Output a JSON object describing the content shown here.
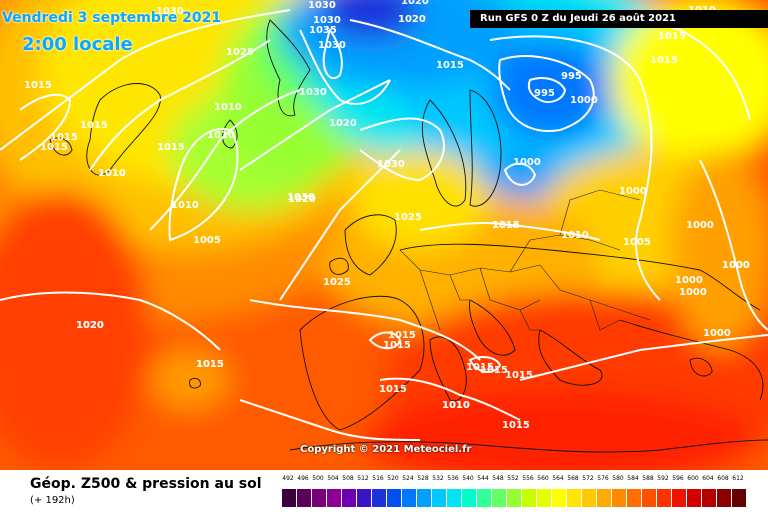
{
  "header": {
    "date_line": "Vendredi 3 septembre 2021",
    "time_line": "2:00 locale",
    "run_info": "Run GFS 0 Z du Jeudi 26 août 2021",
    "copyright": "Copyright © 2021 Meteociel.fr"
  },
  "footer": {
    "title": "Géop. Z500 & pression au sol",
    "subtitle": "(+ 192h)"
  },
  "legend": {
    "values": [
      "492",
      "496",
      "500",
      "504",
      "508",
      "512",
      "516",
      "520",
      "524",
      "528",
      "532",
      "536",
      "540",
      "544",
      "548",
      "552",
      "556",
      "560",
      "564",
      "568",
      "572",
      "576",
      "580",
      "584",
      "588",
      "592",
      "596",
      "600",
      "604",
      "608",
      "612"
    ],
    "colors": [
      "#3c003c",
      "#5a005a",
      "#780078",
      "#8c0096",
      "#6e00b4",
      "#3c14c8",
      "#1e32dc",
      "#0050f0",
      "#0078ff",
      "#00a0ff",
      "#00c8ff",
      "#00e6f0",
      "#00ffc8",
      "#32ff96",
      "#64ff64",
      "#96ff32",
      "#c8ff00",
      "#e6ff00",
      "#ffff00",
      "#ffe600",
      "#ffc800",
      "#ffaa00",
      "#ff8c00",
      "#ff6e00",
      "#ff5000",
      "#ff3200",
      "#f01400",
      "#d20000",
      "#b40000",
      "#8c0000",
      "#640000"
    ]
  },
  "isobar_labels": [
    "1030",
    "1020",
    "1030",
    "1030",
    "1035",
    "1030",
    "1020",
    "1025",
    "1015",
    "1015",
    "1015",
    "1015",
    "1015",
    "1010",
    "1010",
    "1010",
    "1015",
    "1015",
    "1015",
    "1010",
    "1030",
    "1020",
    "1030",
    "1020",
    "1010",
    "1005",
    "1020",
    "1025",
    "1030",
    "1025",
    "1015",
    "1010",
    "1005",
    "995",
    "995",
    "1000",
    "1000",
    "1000",
    "1000",
    "1000",
    "1015",
    "1010",
    "1020",
    "1015",
    "1000",
    "1000",
    "1000",
    "1000",
    "1015",
    "1015",
    "1015",
    "1015",
    "1015",
    "1015",
    "1010",
    "1015",
    "1015",
    "1010",
    "1015"
  ]
}
